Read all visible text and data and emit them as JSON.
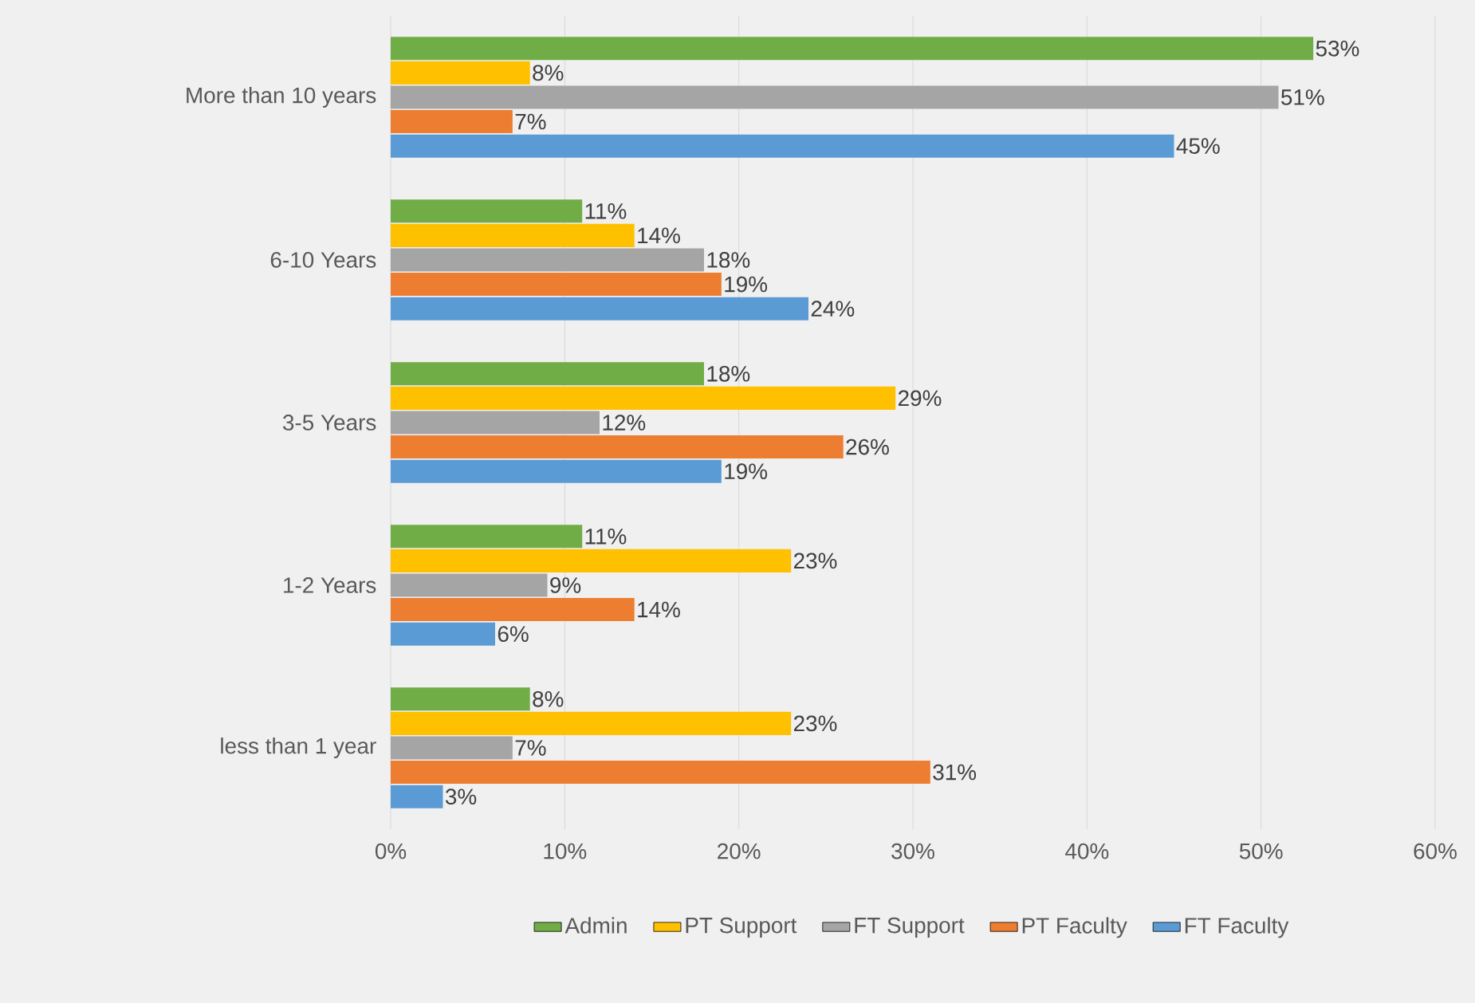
{
  "chart_data": {
    "type": "bar",
    "orientation": "horizontal",
    "categories": [
      "More than 10 years",
      "6-10 Years",
      "3-5 Years",
      "1-2 Years",
      "less than 1 year"
    ],
    "series": [
      {
        "name": "Admin",
        "color": "#70ad47",
        "values": [
          53,
          11,
          18,
          11,
          8
        ],
        "value_labels": [
          "53%",
          "11%",
          "18%",
          "11%",
          "8%"
        ]
      },
      {
        "name": "PT Support",
        "color": "#ffc000",
        "values": [
          8,
          14,
          29,
          23,
          23
        ],
        "value_labels": [
          "8%",
          "14%",
          "29%",
          "23%",
          "23%"
        ]
      },
      {
        "name": "FT Support",
        "color": "#a5a5a5",
        "values": [
          51,
          18,
          12,
          9,
          7
        ],
        "value_labels": [
          "51%",
          "18%",
          "12%",
          "9%",
          "7%"
        ]
      },
      {
        "name": "PT Faculty",
        "color": "#ed7d31",
        "values": [
          7,
          19,
          26,
          14,
          31
        ],
        "value_labels": [
          "7%",
          "19%",
          "26%",
          "14%",
          "31%"
        ]
      },
      {
        "name": "FT Faculty",
        "color": "#5b9bd5",
        "values": [
          45,
          24,
          19,
          6,
          3
        ],
        "value_labels": [
          "45%",
          "24%",
          "19%",
          "6%",
          "3%"
        ]
      }
    ],
    "xlim": [
      0,
      60
    ],
    "xticks": [
      {
        "value": 0,
        "label": "0%"
      },
      {
        "value": 10,
        "label": "10%"
      },
      {
        "value": 20,
        "label": "20%"
      },
      {
        "value": 30,
        "label": "30%"
      },
      {
        "value": 40,
        "label": "40%"
      },
      {
        "value": 50,
        "label": "50%"
      },
      {
        "value": 60,
        "label": "60%"
      }
    ],
    "grid": "x",
    "legend": "bottom"
  }
}
